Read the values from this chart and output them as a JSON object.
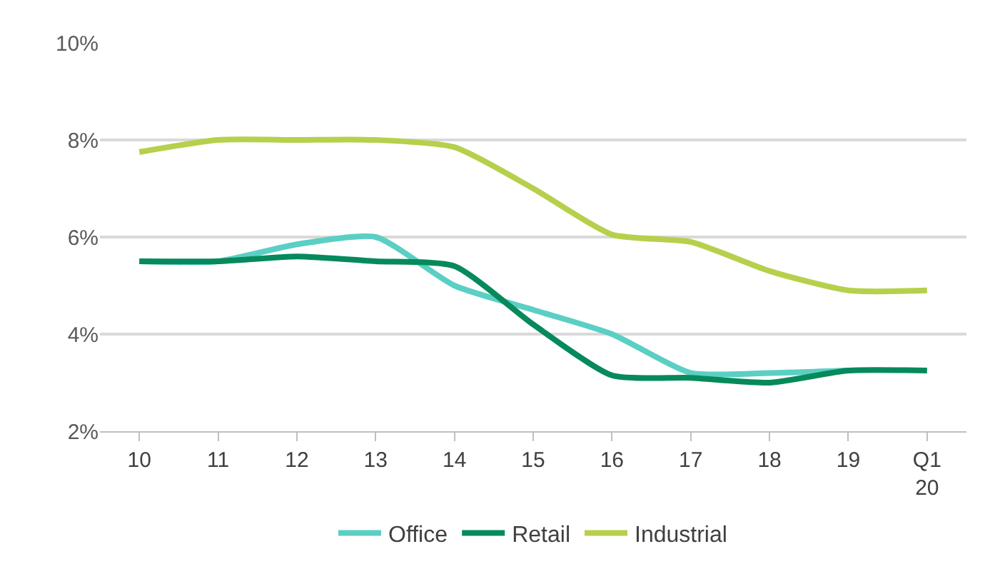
{
  "chart_data": {
    "type": "line",
    "categories": [
      "10",
      "11",
      "12",
      "13",
      "14",
      "15",
      "16",
      "17",
      "18",
      "19",
      "Q1 20"
    ],
    "series": [
      {
        "name": "Office",
        "color": "#5bcfc4",
        "values": [
          5.5,
          5.5,
          5.85,
          6.0,
          5.0,
          4.5,
          4.0,
          3.2,
          3.2,
          3.25,
          null
        ]
      },
      {
        "name": "Retail",
        "color": "#078a5b",
        "values": [
          5.5,
          5.5,
          5.6,
          5.5,
          5.4,
          4.2,
          3.15,
          3.1,
          3.0,
          3.25,
          3.25
        ]
      },
      {
        "name": "Industrial",
        "color": "#b6d04c",
        "values": [
          7.75,
          8.0,
          8.0,
          8.0,
          7.85,
          7.0,
          6.05,
          5.9,
          5.3,
          4.9,
          4.9
        ]
      }
    ],
    "ylim": [
      2,
      10
    ],
    "yticks": [
      {
        "value": 2,
        "label": "2%"
      },
      {
        "value": 4,
        "label": "4%"
      },
      {
        "value": 6,
        "label": "6%"
      },
      {
        "value": 8,
        "label": "8%"
      },
      {
        "value": 10,
        "label": "10%"
      }
    ],
    "grid": "y",
    "legend": "bottom",
    "marker": "none",
    "line_style": "solid"
  }
}
